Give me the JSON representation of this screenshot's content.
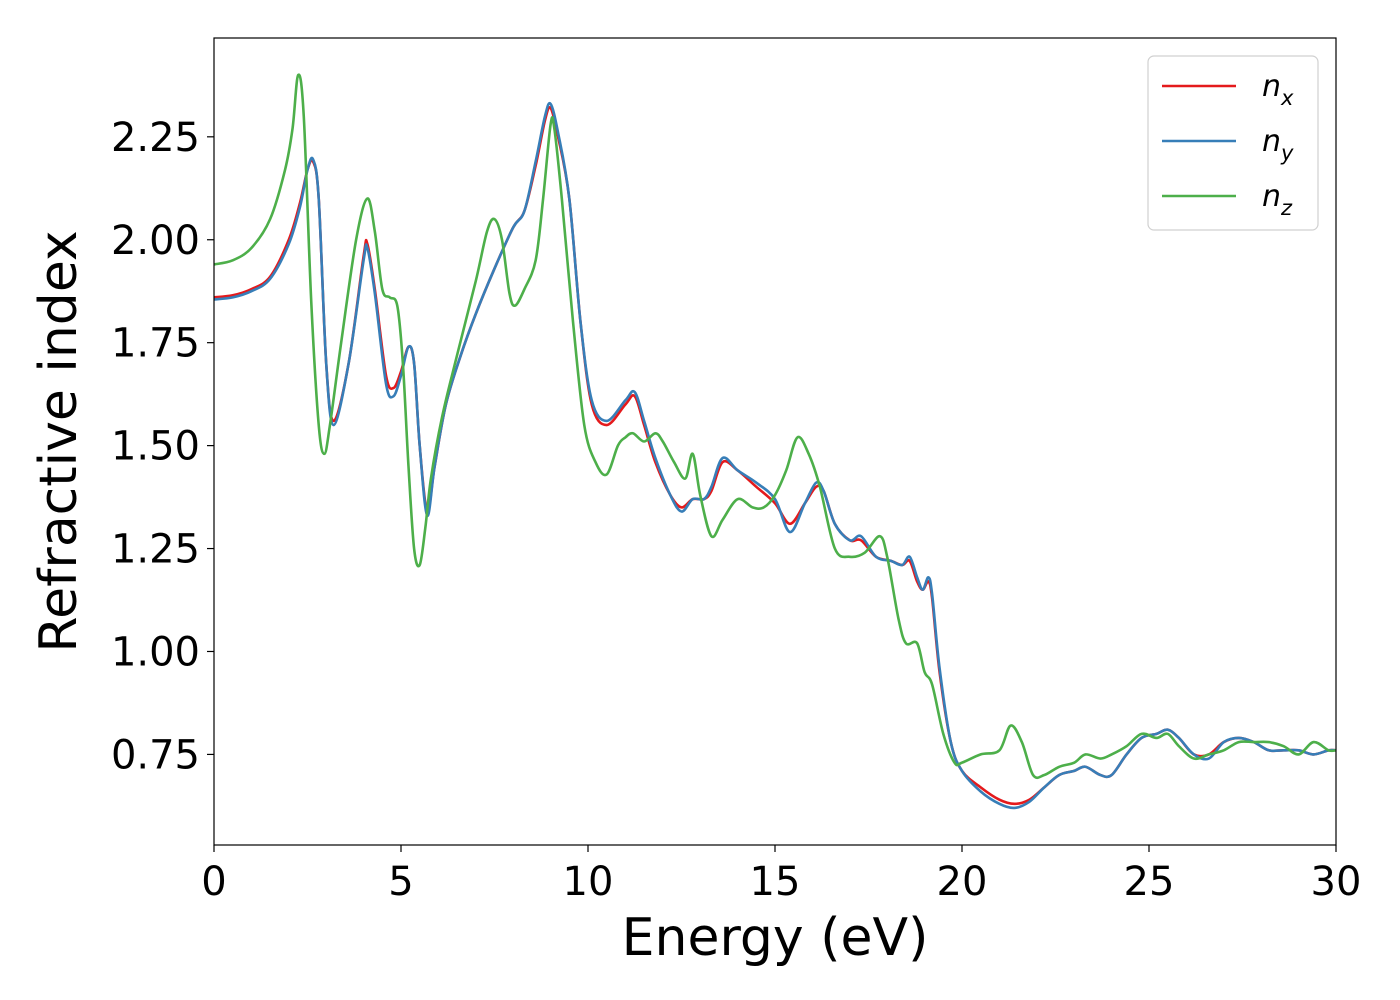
{
  "chart_data": {
    "type": "line",
    "title": "",
    "xlabel": "Energy (eV)",
    "ylabel": "Refractive index",
    "xlim": [
      0,
      30
    ],
    "ylim": [
      0.53,
      2.49
    ],
    "xticks": [
      0,
      5,
      10,
      15,
      20,
      25,
      30
    ],
    "xtick_labels": [
      "0",
      "5",
      "10",
      "15",
      "20",
      "25",
      "30"
    ],
    "yticks": [
      0.75,
      1.0,
      1.25,
      1.5,
      1.75,
      2.0,
      2.25
    ],
    "ytick_labels": [
      "0.75",
      "1.00",
      "1.25",
      "1.50",
      "1.75",
      "2.00",
      "2.25"
    ],
    "grid": false,
    "legend_position": "top-right",
    "series": [
      {
        "name": "n_x",
        "label_main": "n",
        "label_sub": "x",
        "color": "#e41a1c",
        "x": [
          0,
          0.5,
          1,
          1.5,
          2,
          2.3,
          2.5,
          2.65,
          2.8,
          3.0,
          3.2,
          3.6,
          4.0,
          4.1,
          4.3,
          4.6,
          4.8,
          5.0,
          5.2,
          5.35,
          5.5,
          5.7,
          5.9,
          6.2,
          6.6,
          7,
          7.5,
          8,
          8.3,
          8.6,
          8.85,
          9.0,
          9.2,
          9.5,
          9.8,
          10.1,
          10.5,
          11.0,
          11.25,
          11.5,
          11.8,
          12.2,
          12.5,
          12.8,
          13.1,
          13.3,
          13.6,
          14.0,
          14.5,
          15.0,
          15.4,
          15.8,
          16.1,
          16.3,
          16.6,
          17.0,
          17.3,
          17.7,
          18.1,
          18.4,
          18.6,
          18.8,
          18.95,
          19.1,
          19.2,
          19.4,
          19.7,
          20.0,
          20.5,
          21.0,
          21.4,
          21.8,
          22.2,
          22.6,
          23.0,
          23.3,
          23.7,
          24.0,
          24.4,
          24.8,
          25.2,
          25.5,
          25.8,
          26.2,
          26.6,
          27.0,
          27.4,
          27.8,
          28.2,
          28.6,
          29.0,
          29.4,
          29.8,
          30
        ],
        "y": [
          1.86,
          1.865,
          1.88,
          1.91,
          2.0,
          2.09,
          2.17,
          2.19,
          2.1,
          1.7,
          1.56,
          1.7,
          1.96,
          1.99,
          1.88,
          1.67,
          1.64,
          1.68,
          1.74,
          1.7,
          1.5,
          1.34,
          1.45,
          1.6,
          1.72,
          1.82,
          1.93,
          2.03,
          2.07,
          2.18,
          2.29,
          2.32,
          2.25,
          2.1,
          1.8,
          1.6,
          1.55,
          1.6,
          1.62,
          1.55,
          1.46,
          1.38,
          1.35,
          1.37,
          1.37,
          1.39,
          1.46,
          1.44,
          1.4,
          1.36,
          1.31,
          1.36,
          1.4,
          1.39,
          1.31,
          1.27,
          1.27,
          1.23,
          1.22,
          1.21,
          1.22,
          1.17,
          1.15,
          1.17,
          1.13,
          0.95,
          0.78,
          0.71,
          0.67,
          0.64,
          0.63,
          0.64,
          0.67,
          0.7,
          0.71,
          0.72,
          0.7,
          0.7,
          0.75,
          0.79,
          0.8,
          0.81,
          0.79,
          0.75,
          0.75,
          0.78,
          0.79,
          0.78,
          0.76,
          0.76,
          0.76,
          0.75,
          0.76,
          0.76
        ]
      },
      {
        "name": "n_y",
        "label_main": "n",
        "label_sub": "y",
        "color": "#377eb8",
        "x": [
          0,
          0.5,
          1,
          1.5,
          2,
          2.3,
          2.5,
          2.65,
          2.8,
          3.0,
          3.2,
          3.6,
          4.0,
          4.1,
          4.3,
          4.6,
          4.8,
          5.0,
          5.2,
          5.35,
          5.5,
          5.7,
          5.9,
          6.2,
          6.6,
          7,
          7.5,
          8,
          8.3,
          8.6,
          8.85,
          9.0,
          9.2,
          9.5,
          9.8,
          10.1,
          10.5,
          11.0,
          11.25,
          11.5,
          11.8,
          12.2,
          12.5,
          12.8,
          13.1,
          13.3,
          13.6,
          14.0,
          14.5,
          15.0,
          15.4,
          15.8,
          16.1,
          16.3,
          16.6,
          17.0,
          17.3,
          17.7,
          18.1,
          18.4,
          18.6,
          18.8,
          18.95,
          19.1,
          19.2,
          19.4,
          19.7,
          20.0,
          20.5,
          21.0,
          21.4,
          21.8,
          22.2,
          22.6,
          23.0,
          23.3,
          23.7,
          24.0,
          24.4,
          24.8,
          25.2,
          25.5,
          25.8,
          26.2,
          26.6,
          27.0,
          27.4,
          27.8,
          28.2,
          28.6,
          29.0,
          29.4,
          29.8,
          30
        ],
        "y": [
          1.855,
          1.86,
          1.875,
          1.905,
          1.99,
          2.08,
          2.17,
          2.195,
          2.1,
          1.7,
          1.55,
          1.7,
          1.95,
          1.98,
          1.87,
          1.65,
          1.62,
          1.67,
          1.74,
          1.7,
          1.5,
          1.33,
          1.45,
          1.6,
          1.72,
          1.82,
          1.93,
          2.03,
          2.07,
          2.19,
          2.3,
          2.33,
          2.26,
          2.1,
          1.8,
          1.61,
          1.56,
          1.61,
          1.63,
          1.56,
          1.47,
          1.38,
          1.34,
          1.37,
          1.37,
          1.4,
          1.47,
          1.44,
          1.41,
          1.37,
          1.29,
          1.36,
          1.41,
          1.39,
          1.31,
          1.27,
          1.28,
          1.23,
          1.22,
          1.21,
          1.23,
          1.18,
          1.15,
          1.18,
          1.14,
          0.96,
          0.78,
          0.71,
          0.66,
          0.63,
          0.62,
          0.635,
          0.67,
          0.7,
          0.71,
          0.72,
          0.7,
          0.7,
          0.75,
          0.79,
          0.8,
          0.81,
          0.79,
          0.75,
          0.74,
          0.78,
          0.79,
          0.78,
          0.76,
          0.76,
          0.76,
          0.75,
          0.76,
          0.76
        ]
      },
      {
        "name": "n_z",
        "label_main": "n",
        "label_sub": "z",
        "color": "#4daf4a",
        "x": [
          0,
          0.5,
          1,
          1.5,
          1.9,
          2.1,
          2.25,
          2.4,
          2.6,
          2.8,
          2.95,
          3.1,
          3.4,
          3.8,
          4.1,
          4.3,
          4.5,
          4.7,
          4.9,
          5.05,
          5.2,
          5.35,
          5.5,
          5.65,
          5.8,
          6.1,
          6.5,
          7.0,
          7.3,
          7.5,
          7.7,
          7.9,
          8.05,
          8.3,
          8.6,
          8.8,
          9.0,
          9.1,
          9.3,
          9.6,
          9.9,
          10.2,
          10.5,
          10.8,
          11.0,
          11.2,
          11.5,
          11.8,
          12.0,
          12.3,
          12.6,
          12.8,
          13.0,
          13.3,
          13.6,
          14.0,
          14.4,
          14.7,
          15.0,
          15.3,
          15.6,
          15.9,
          16.2,
          16.6,
          17.0,
          17.4,
          17.8,
          18.0,
          18.3,
          18.5,
          18.8,
          19.0,
          19.2,
          19.5,
          19.8,
          20.0,
          20.5,
          21.0,
          21.3,
          21.6,
          21.9,
          22.2,
          22.6,
          23.0,
          23.3,
          23.7,
          24.0,
          24.4,
          24.8,
          25.2,
          25.5,
          25.8,
          26.2,
          26.6,
          27.0,
          27.4,
          27.8,
          28.2,
          28.6,
          29.0,
          29.4,
          29.8,
          30
        ],
        "y": [
          1.94,
          1.95,
          1.98,
          2.05,
          2.17,
          2.27,
          2.4,
          2.3,
          1.85,
          1.55,
          1.48,
          1.55,
          1.75,
          2.0,
          2.1,
          2.02,
          1.88,
          1.86,
          1.84,
          1.7,
          1.45,
          1.25,
          1.21,
          1.3,
          1.42,
          1.57,
          1.72,
          1.9,
          2.02,
          2.05,
          2.0,
          1.87,
          1.84,
          1.88,
          1.95,
          2.1,
          2.28,
          2.27,
          2.1,
          1.8,
          1.55,
          1.46,
          1.43,
          1.5,
          1.52,
          1.53,
          1.51,
          1.53,
          1.51,
          1.46,
          1.42,
          1.48,
          1.38,
          1.28,
          1.32,
          1.37,
          1.35,
          1.35,
          1.38,
          1.44,
          1.52,
          1.48,
          1.4,
          1.25,
          1.23,
          1.24,
          1.28,
          1.23,
          1.08,
          1.02,
          1.02,
          0.95,
          0.92,
          0.8,
          0.73,
          0.73,
          0.75,
          0.76,
          0.82,
          0.78,
          0.7,
          0.7,
          0.72,
          0.73,
          0.75,
          0.74,
          0.75,
          0.77,
          0.8,
          0.79,
          0.8,
          0.77,
          0.74,
          0.75,
          0.76,
          0.78,
          0.78,
          0.78,
          0.77,
          0.75,
          0.78,
          0.76,
          0.76
        ]
      }
    ]
  }
}
